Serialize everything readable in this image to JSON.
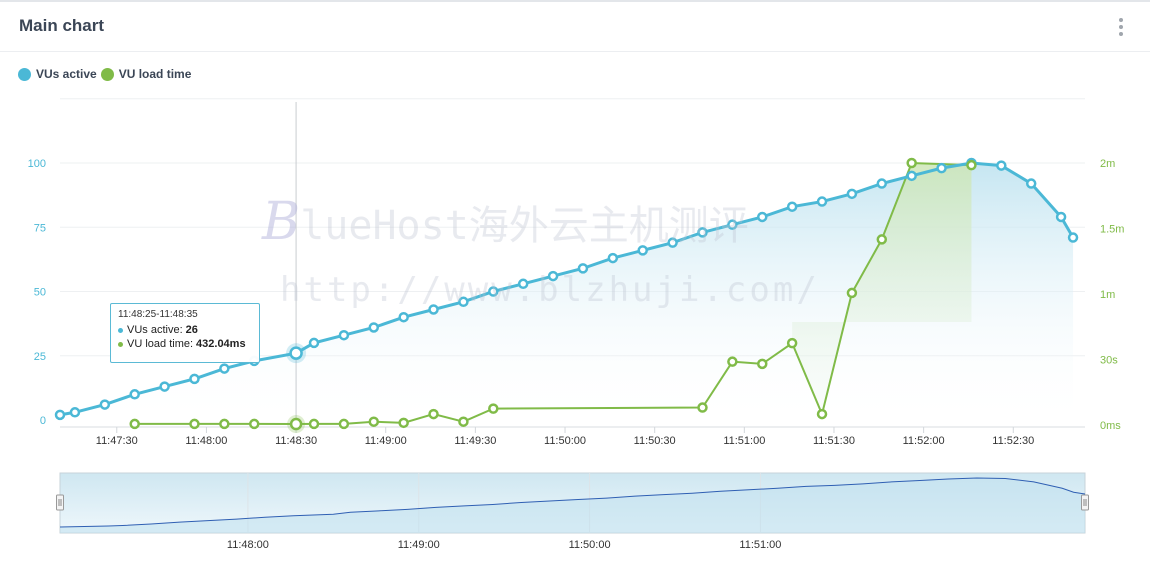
{
  "header": {
    "title": "Main chart",
    "menu_icon": "kebab-menu-icon"
  },
  "legend": [
    {
      "label": "VUs active",
      "color": "#4bb8d6"
    },
    {
      "label": "VU load time",
      "color": "#80bb48"
    }
  ],
  "tooltip": {
    "time_range": "11:48:25-11:48:35",
    "rows": [
      {
        "label": "VUs active:",
        "value": "26",
        "color": "#4bb8d6"
      },
      {
        "label": "VU load time:",
        "value": "432.04ms",
        "color": "#80bb48"
      }
    ]
  },
  "watermark": {
    "line1_initial": "B",
    "line1_rest": "lueHost海外云主机测评",
    "line2": "http://www.blzhuji.com/"
  },
  "chart_data": {
    "type": "line",
    "x_unit": "time",
    "x_ticks": [
      "11:47:30",
      "11:48:00",
      "11:48:30",
      "11:49:00",
      "11:49:30",
      "11:50:00",
      "11:50:30",
      "11:51:00",
      "11:51:30",
      "11:52:00",
      "11:52:30"
    ],
    "x_range": [
      "11:47:11",
      "11:52:54"
    ],
    "y_left": {
      "ticks": [
        "0",
        "25",
        "50",
        "75",
        "100"
      ],
      "range": [
        0,
        125
      ],
      "color": "#4bb8d6"
    },
    "y_right": {
      "ticks": [
        "0ms",
        "30s",
        "1m",
        "1.5m",
        "2m"
      ],
      "range_seconds": [
        0,
        150
      ],
      "color": "#80bb48"
    },
    "hover_time": "11:48:30",
    "series": [
      {
        "name": "VUs active",
        "color": "#4bb8d6",
        "axis": "left",
        "area": true,
        "points": [
          [
            "11:47:11",
            2
          ],
          [
            "11:47:16",
            3
          ],
          [
            "11:47:26",
            6
          ],
          [
            "11:47:36",
            10
          ],
          [
            "11:47:46",
            13
          ],
          [
            "11:47:56",
            16
          ],
          [
            "11:48:06",
            20
          ],
          [
            "11:48:16",
            23
          ],
          [
            "11:48:30",
            26
          ],
          [
            "11:48:36",
            30
          ],
          [
            "11:48:46",
            33
          ],
          [
            "11:48:56",
            36
          ],
          [
            "11:49:06",
            40
          ],
          [
            "11:49:16",
            43
          ],
          [
            "11:49:26",
            46
          ],
          [
            "11:49:36",
            50
          ],
          [
            "11:49:46",
            53
          ],
          [
            "11:49:56",
            56
          ],
          [
            "11:50:06",
            59
          ],
          [
            "11:50:16",
            63
          ],
          [
            "11:50:26",
            66
          ],
          [
            "11:50:36",
            69
          ],
          [
            "11:50:46",
            73
          ],
          [
            "11:50:56",
            76
          ],
          [
            "11:51:06",
            79
          ],
          [
            "11:51:16",
            83
          ],
          [
            "11:51:26",
            85
          ],
          [
            "11:51:36",
            88
          ],
          [
            "11:51:46",
            92
          ],
          [
            "11:51:56",
            95
          ],
          [
            "11:52:06",
            98
          ],
          [
            "11:52:16",
            100
          ],
          [
            "11:52:26",
            99
          ],
          [
            "11:52:36",
            92
          ],
          [
            "11:52:46",
            79
          ],
          [
            "11:52:50",
            71
          ]
        ]
      },
      {
        "name": "VU load time",
        "color": "#80bb48",
        "axis": "right",
        "unit": "s",
        "area_after": "11:51:16",
        "points": [
          [
            "11:47:36",
            0.5
          ],
          [
            "11:47:56",
            0.5
          ],
          [
            "11:48:06",
            0.5
          ],
          [
            "11:48:16",
            0.5
          ],
          [
            "11:48:30",
            0.43
          ],
          [
            "11:48:36",
            0.5
          ],
          [
            "11:48:46",
            0.5
          ],
          [
            "11:48:56",
            1.5
          ],
          [
            "11:49:06",
            1
          ],
          [
            "11:49:16",
            5
          ],
          [
            "11:49:26",
            1.5
          ],
          [
            "11:49:36",
            7.5
          ],
          [
            "11:50:46",
            8
          ],
          [
            "11:50:56",
            29
          ],
          [
            "11:51:06",
            28
          ],
          [
            "11:51:16",
            37.5
          ],
          [
            "11:51:26",
            5
          ],
          [
            "11:51:36",
            60.5
          ],
          [
            "11:51:46",
            85
          ],
          [
            "11:51:56",
            120
          ],
          [
            "11:52:16",
            119
          ]
        ]
      }
    ],
    "navigator": {
      "x_ticks": [
        "11:48:00",
        "11:49:00",
        "11:50:00",
        "11:51:00"
      ],
      "x_range": [
        "11:46:54",
        "11:52:54"
      ]
    }
  }
}
